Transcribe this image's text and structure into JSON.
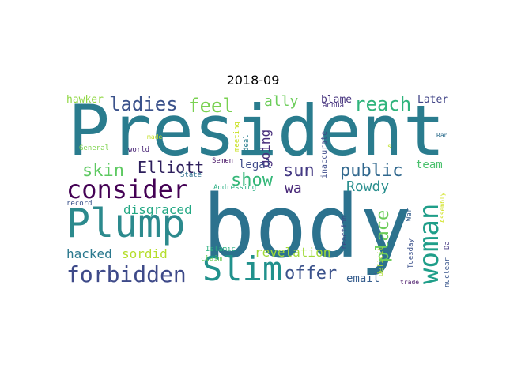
{
  "title": "2018-09",
  "words": [
    {
      "text": "President",
      "color": "#2a7c8e",
      "vertical": false
    },
    {
      "text": "body",
      "color": "#2c728e",
      "vertical": false
    },
    {
      "text": "Plump",
      "color": "#2c8a8d",
      "vertical": false
    },
    {
      "text": "consider",
      "color": "#440154",
      "vertical": false
    },
    {
      "text": "Slim",
      "color": "#21918c",
      "vertical": false
    },
    {
      "text": "forbidden",
      "color": "#3e4a89",
      "vertical": false
    },
    {
      "text": "woman",
      "color": "#1f9e89",
      "vertical": true
    },
    {
      "text": "ladies",
      "color": "#3b528b",
      "vertical": false
    },
    {
      "text": "feel",
      "color": "#7ad151",
      "vertical": false
    },
    {
      "text": "ally",
      "color": "#6ccd5a",
      "vertical": false
    },
    {
      "text": "reach",
      "color": "#2fb47c",
      "vertical": false
    },
    {
      "text": "skin",
      "color": "#5ec962",
      "vertical": false
    },
    {
      "text": "Elliott",
      "color": "#2d1e5c",
      "vertical": false
    },
    {
      "text": "show",
      "color": "#35b779",
      "vertical": false
    },
    {
      "text": "sun",
      "color": "#443983",
      "vertical": false
    },
    {
      "text": "public",
      "color": "#31688e",
      "vertical": false
    },
    {
      "text": "place",
      "color": "#6ccd5a",
      "vertical": true
    },
    {
      "text": "Rowdy",
      "color": "#2a8f8e",
      "vertical": false
    },
    {
      "text": "offer",
      "color": "#3b528b",
      "vertical": false
    },
    {
      "text": "revelation",
      "color": "#a0da39",
      "vertical": false
    },
    {
      "text": "hacked",
      "color": "#2a788e",
      "vertical": false
    },
    {
      "text": "sordid",
      "color": "#b5de2b",
      "vertical": false
    },
    {
      "text": "disgraced",
      "color": "#22a884",
      "vertical": false
    },
    {
      "text": "going",
      "color": "#472d7b",
      "vertical": true
    },
    {
      "text": "legal",
      "color": "#3e4a89",
      "vertical": false
    },
    {
      "text": "wa",
      "color": "#482878",
      "vertical": false
    },
    {
      "text": "email",
      "color": "#365d8d",
      "vertical": false
    },
    {
      "text": "team",
      "color": "#4ac16d",
      "vertical": false
    },
    {
      "text": "hawker",
      "color": "#90d743",
      "vertical": false
    },
    {
      "text": "blame",
      "color": "#46337e",
      "vertical": false
    },
    {
      "text": "Later",
      "color": "#414487",
      "vertical": false
    },
    {
      "text": "annual",
      "color": "#46327e",
      "vertical": false
    },
    {
      "text": "made",
      "color": "#c2df23",
      "vertical": false
    },
    {
      "text": "meeting",
      "color": "#c8e020",
      "vertical": true
    },
    {
      "text": "deal",
      "color": "#287d8e",
      "vertical": true
    },
    {
      "text": "inaccurate",
      "color": "#3e4c8a",
      "vertical": true
    },
    {
      "text": "General",
      "color": "#7fd34e",
      "vertical": false
    },
    {
      "text": "world",
      "color": "#482475",
      "vertical": false
    },
    {
      "text": "Semen",
      "color": "#471365",
      "vertical": false
    },
    {
      "text": "State",
      "color": "#2e6e8e",
      "vertical": false
    },
    {
      "text": "Addressing",
      "color": "#26ad81",
      "vertical": false
    },
    {
      "text": "Ran",
      "color": "#2e6e8e",
      "vertical": false
    },
    {
      "text": "s",
      "color": "#bddf26",
      "vertical": false
    },
    {
      "text": "record",
      "color": "#3b528b",
      "vertical": false
    },
    {
      "text": "War",
      "color": "#355e8d",
      "vertical": true
    },
    {
      "text": "Assembly",
      "color": "#d0e11c",
      "vertical": true
    },
    {
      "text": "reaction",
      "color": "#3f4788",
      "vertical": true
    },
    {
      "text": "Tuesday",
      "color": "#3b518b",
      "vertical": true
    },
    {
      "text": "Islamic",
      "color": "#2ab07f",
      "vertical": false
    },
    {
      "text": "claim",
      "color": "#6ece58",
      "vertical": false
    },
    {
      "text": "deficit",
      "color": "#addc30",
      "vertical": true
    },
    {
      "text": "trade",
      "color": "#481668",
      "vertical": false
    },
    {
      "text": "nuclear",
      "color": "#39568c",
      "vertical": true
    },
    {
      "text": "Da",
      "color": "#453882",
      "vertical": true
    }
  ]
}
